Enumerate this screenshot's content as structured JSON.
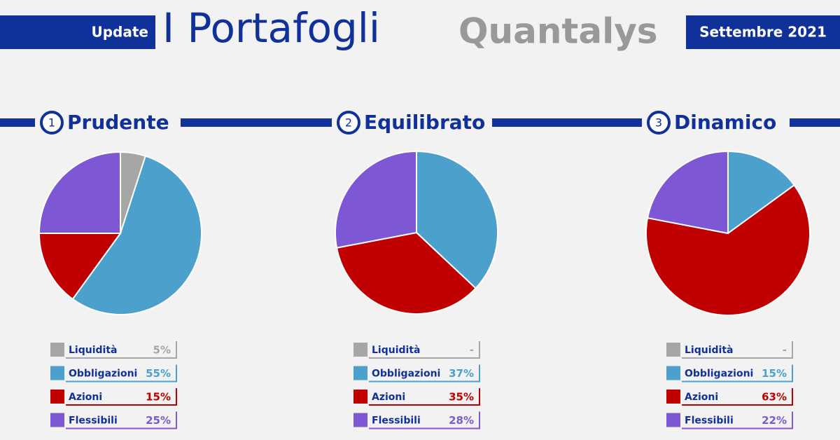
{
  "header": {
    "left": "Update",
    "title": "I Portafogli",
    "logo": "Quantalys",
    "date": "Settembre 2021"
  },
  "chart_data": [
    {
      "type": "pie",
      "badge": "1",
      "title": "Prudente",
      "categories": [
        "Liquidità",
        "Obbligazioni",
        "Azioni",
        "Flessibili"
      ],
      "values": [
        5,
        55,
        15,
        25
      ],
      "value_labels": [
        "5%",
        "55%",
        "15%",
        "25%"
      ],
      "colors": [
        "#a6a6a6",
        "#4ba0cc",
        "#c00000",
        "#7e57d4"
      ]
    },
    {
      "type": "pie",
      "badge": "2",
      "title": "Equilibrato",
      "categories": [
        "Liquidità",
        "Obbligazioni",
        "Azioni",
        "Flessibili"
      ],
      "values": [
        null,
        37,
        35,
        28
      ],
      "value_labels": [
        "-",
        "37%",
        "35%",
        "28%"
      ],
      "colors": [
        "#a6a6a6",
        "#4ba0cc",
        "#c00000",
        "#7e57d4"
      ]
    },
    {
      "type": "pie",
      "badge": "3",
      "title": "Dinamico",
      "categories": [
        "Liquidità",
        "Obbligazioni",
        "Azioni",
        "Flessibili"
      ],
      "values": [
        null,
        15,
        63,
        22
      ],
      "value_labels": [
        "-",
        "15%",
        "63%",
        "22%"
      ],
      "colors": [
        "#a6a6a6",
        "#4ba0cc",
        "#c00000",
        "#7e57d4"
      ]
    }
  ]
}
